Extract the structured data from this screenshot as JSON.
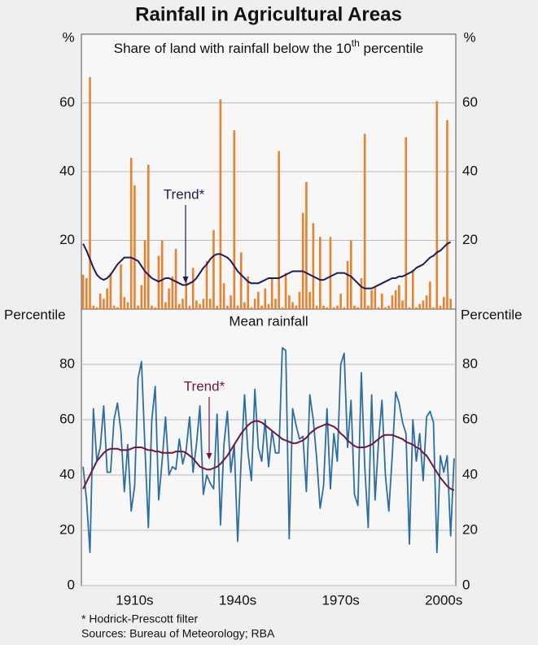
{
  "title": "Rainfall in Agricultural Areas",
  "notes": [
    "*  Hodrick-Prescott filter",
    "Sources: Bureau of Meteorology; RBA"
  ],
  "chart_data": [
    {
      "type": "bar",
      "subtitle": [
        "Share of land with rainfall below the 10",
        "th",
        " percentile"
      ],
      "ylabel": "%",
      "y2label": "%",
      "xlim": [
        1899.5,
        2008.5
      ],
      "ylim": [
        0,
        80
      ],
      "yticks": [
        20,
        40,
        60
      ],
      "y2lim": [
        0,
        80
      ],
      "y2ticks": [
        20,
        40,
        60
      ],
      "grid": true,
      "x": [
        1900,
        1901,
        1902,
        1903,
        1904,
        1905,
        1906,
        1907,
        1908,
        1909,
        1910,
        1911,
        1912,
        1913,
        1914,
        1915,
        1916,
        1917,
        1918,
        1919,
        1920,
        1921,
        1922,
        1923,
        1924,
        1925,
        1926,
        1927,
        1928,
        1929,
        1930,
        1931,
        1932,
        1933,
        1934,
        1935,
        1936,
        1937,
        1938,
        1939,
        1940,
        1941,
        1942,
        1943,
        1944,
        1945,
        1946,
        1947,
        1948,
        1949,
        1950,
        1951,
        1952,
        1953,
        1954,
        1955,
        1956,
        1957,
        1958,
        1959,
        1960,
        1961,
        1962,
        1963,
        1964,
        1965,
        1966,
        1967,
        1968,
        1969,
        1970,
        1971,
        1972,
        1973,
        1974,
        1975,
        1976,
        1977,
        1978,
        1979,
        1980,
        1981,
        1982,
        1983,
        1984,
        1985,
        1986,
        1987,
        1988,
        1989,
        1990,
        1991,
        1992,
        1993,
        1994,
        1995,
        1996,
        1997,
        1998,
        1999,
        2000,
        2001,
        2002,
        2003,
        2004,
        2005,
        2006,
        2007
      ],
      "series": [
        {
          "type": "bar",
          "color": "#e8822e",
          "values": [
            10,
            9,
            67.5,
            1,
            0.5,
            4.5,
            3,
            6,
            10.5,
            1,
            0.5,
            13,
            3.5,
            2,
            44,
            36,
            1,
            7,
            20,
            42,
            1,
            0.5,
            15.5,
            20,
            2,
            6,
            9.5,
            17.5,
            1.5,
            3,
            9,
            1,
            12,
            2.5,
            1.5,
            3,
            14,
            3,
            23,
            1,
            61,
            7.5,
            1,
            4,
            52,
            1,
            16.5,
            2,
            9.5,
            0.5,
            3,
            5,
            1,
            6,
            1.5,
            9,
            3,
            46,
            0.5,
            10.5,
            4,
            2,
            1,
            5,
            28,
            37,
            5,
            25,
            1,
            21,
            1,
            0.5,
            21,
            0.5,
            1,
            4.5,
            0.5,
            14,
            20,
            1,
            0.5,
            9,
            51,
            1,
            5.5,
            6.5,
            0.5,
            4.5,
            0.5,
            1,
            4,
            5.5,
            7,
            2.5,
            50,
            0.5,
            11.5,
            0.5,
            1.5,
            2.5,
            4,
            8,
            0.5,
            60.5,
            1,
            3.5,
            55,
            3
          ]
        },
        {
          "type": "line",
          "name": "Trend*",
          "color": "#1c1c5c",
          "values": [
            19,
            17,
            14.5,
            12,
            10,
            9,
            8.5,
            9,
            10,
            11.5,
            13,
            14,
            15,
            15,
            15,
            14.5,
            14,
            12.5,
            11,
            10,
            9,
            8.5,
            8,
            8.5,
            9,
            9,
            8.5,
            8,
            7.5,
            7,
            7,
            7.5,
            8,
            9,
            10.5,
            12,
            13,
            14.5,
            15.5,
            16,
            16,
            15.5,
            15,
            14,
            12.5,
            11,
            10,
            9,
            8,
            7.5,
            7.5,
            7.5,
            8,
            8.5,
            9,
            9,
            9,
            9,
            9.5,
            10,
            10.5,
            11,
            11,
            11,
            11,
            10.5,
            10,
            9.5,
            9,
            8.5,
            8.5,
            9,
            9.5,
            10,
            10.5,
            10.5,
            10.5,
            10,
            9.5,
            8.5,
            7.5,
            6.5,
            6,
            6,
            6,
            6.5,
            7,
            7.5,
            8,
            8.5,
            9,
            9,
            9.5,
            9.5,
            10,
            10.5,
            11,
            12,
            12.5,
            13,
            14,
            15,
            15.5,
            16.5,
            17,
            18,
            19,
            19.5
          ]
        }
      ]
    },
    {
      "type": "line",
      "subtitle": "Mean rainfall",
      "ylabel": "Percentile",
      "y2label": "Percentile",
      "xlim": [
        1899.5,
        2008.5
      ],
      "xticks": [
        {
          "value": 1915,
          "label": "1910s"
        },
        {
          "value": 1945,
          "label": "1940s"
        },
        {
          "value": 1975,
          "label": "1970s"
        },
        {
          "value": 2005,
          "label": "2000s"
        }
      ],
      "ylim": [
        0,
        100
      ],
      "yticks": [
        0,
        20,
        40,
        60,
        80
      ],
      "y2lim": [
        0,
        100
      ],
      "y2ticks": [
        0,
        20,
        40,
        60,
        80
      ],
      "grid": true,
      "x": [
        1900,
        1901,
        1902,
        1903,
        1904,
        1905,
        1906,
        1907,
        1908,
        1909,
        1910,
        1911,
        1912,
        1913,
        1914,
        1915,
        1916,
        1917,
        1918,
        1919,
        1920,
        1921,
        1922,
        1923,
        1924,
        1925,
        1926,
        1927,
        1928,
        1929,
        1930,
        1931,
        1932,
        1933,
        1934,
        1935,
        1936,
        1937,
        1938,
        1939,
        1940,
        1941,
        1942,
        1943,
        1944,
        1945,
        1946,
        1947,
        1948,
        1949,
        1950,
        1951,
        1952,
        1953,
        1954,
        1955,
        1956,
        1957,
        1958,
        1959,
        1960,
        1961,
        1962,
        1963,
        1964,
        1965,
        1966,
        1967,
        1968,
        1969,
        1970,
        1971,
        1972,
        1973,
        1974,
        1975,
        1976,
        1977,
        1978,
        1979,
        1980,
        1981,
        1982,
        1983,
        1984,
        1985,
        1986,
        1987,
        1988,
        1989,
        1990,
        1991,
        1992,
        1993,
        1994,
        1995,
        1996,
        1997,
        1998,
        1999,
        2000,
        2001,
        2002,
        2003,
        2004,
        2005,
        2006,
        2007,
        2008
      ],
      "series": [
        {
          "type": "line",
          "color": "#2e6da4",
          "values": [
            43,
            31,
            12,
            64,
            45,
            50,
            65,
            41,
            41,
            60,
            66,
            56,
            34,
            51,
            27,
            36,
            75,
            81,
            50,
            21,
            60,
            72,
            31,
            45,
            61,
            40,
            43,
            42,
            53,
            44,
            49,
            61,
            41,
            51,
            65,
            33,
            40,
            37,
            35,
            62,
            22,
            51,
            63,
            41,
            51,
            16,
            45,
            69,
            48,
            38,
            71,
            50,
            45,
            60,
            43,
            56,
            48,
            48,
            86,
            85,
            17,
            64,
            58,
            53,
            54,
            34,
            69,
            60,
            46,
            28,
            36,
            64,
            35,
            55,
            45,
            80,
            84,
            50,
            67,
            33,
            29,
            77,
            43,
            21,
            69,
            31,
            52,
            67,
            40,
            27,
            47,
            70,
            66,
            59,
            55,
            15,
            60,
            45,
            55,
            38,
            61,
            63,
            59,
            12,
            47,
            41,
            47,
            18,
            46
          ]
        },
        {
          "type": "line",
          "name": "Trend*",
          "color": "#6b1a3e",
          "values": [
            35,
            37.5,
            40,
            42.5,
            45,
            46.5,
            48,
            49,
            49.5,
            49.5,
            49.5,
            49,
            49,
            49,
            49.5,
            50,
            50,
            50,
            49.5,
            49,
            49,
            48.5,
            48.5,
            48,
            48,
            48,
            48,
            48.5,
            48.5,
            48.5,
            48,
            47,
            46,
            44.5,
            43,
            42.5,
            42,
            42,
            42.5,
            43,
            44,
            45.5,
            47,
            49,
            51,
            53,
            55,
            56.5,
            58,
            59,
            59.5,
            59.5,
            59,
            58,
            57,
            56,
            55,
            54,
            53,
            52.5,
            52,
            51.5,
            51.5,
            52,
            52.5,
            53.5,
            55,
            56,
            57,
            57.5,
            58,
            58.5,
            58,
            57.5,
            56.5,
            55,
            54,
            52.5,
            51.5,
            50.5,
            50,
            50,
            50,
            50.5,
            51,
            52,
            53,
            54,
            54.5,
            54.5,
            54.5,
            54,
            53.5,
            53,
            52,
            51.5,
            51,
            50,
            49.5,
            48,
            47,
            45,
            43,
            41,
            39,
            37.5,
            36,
            35,
            34.5
          ]
        }
      ]
    }
  ]
}
